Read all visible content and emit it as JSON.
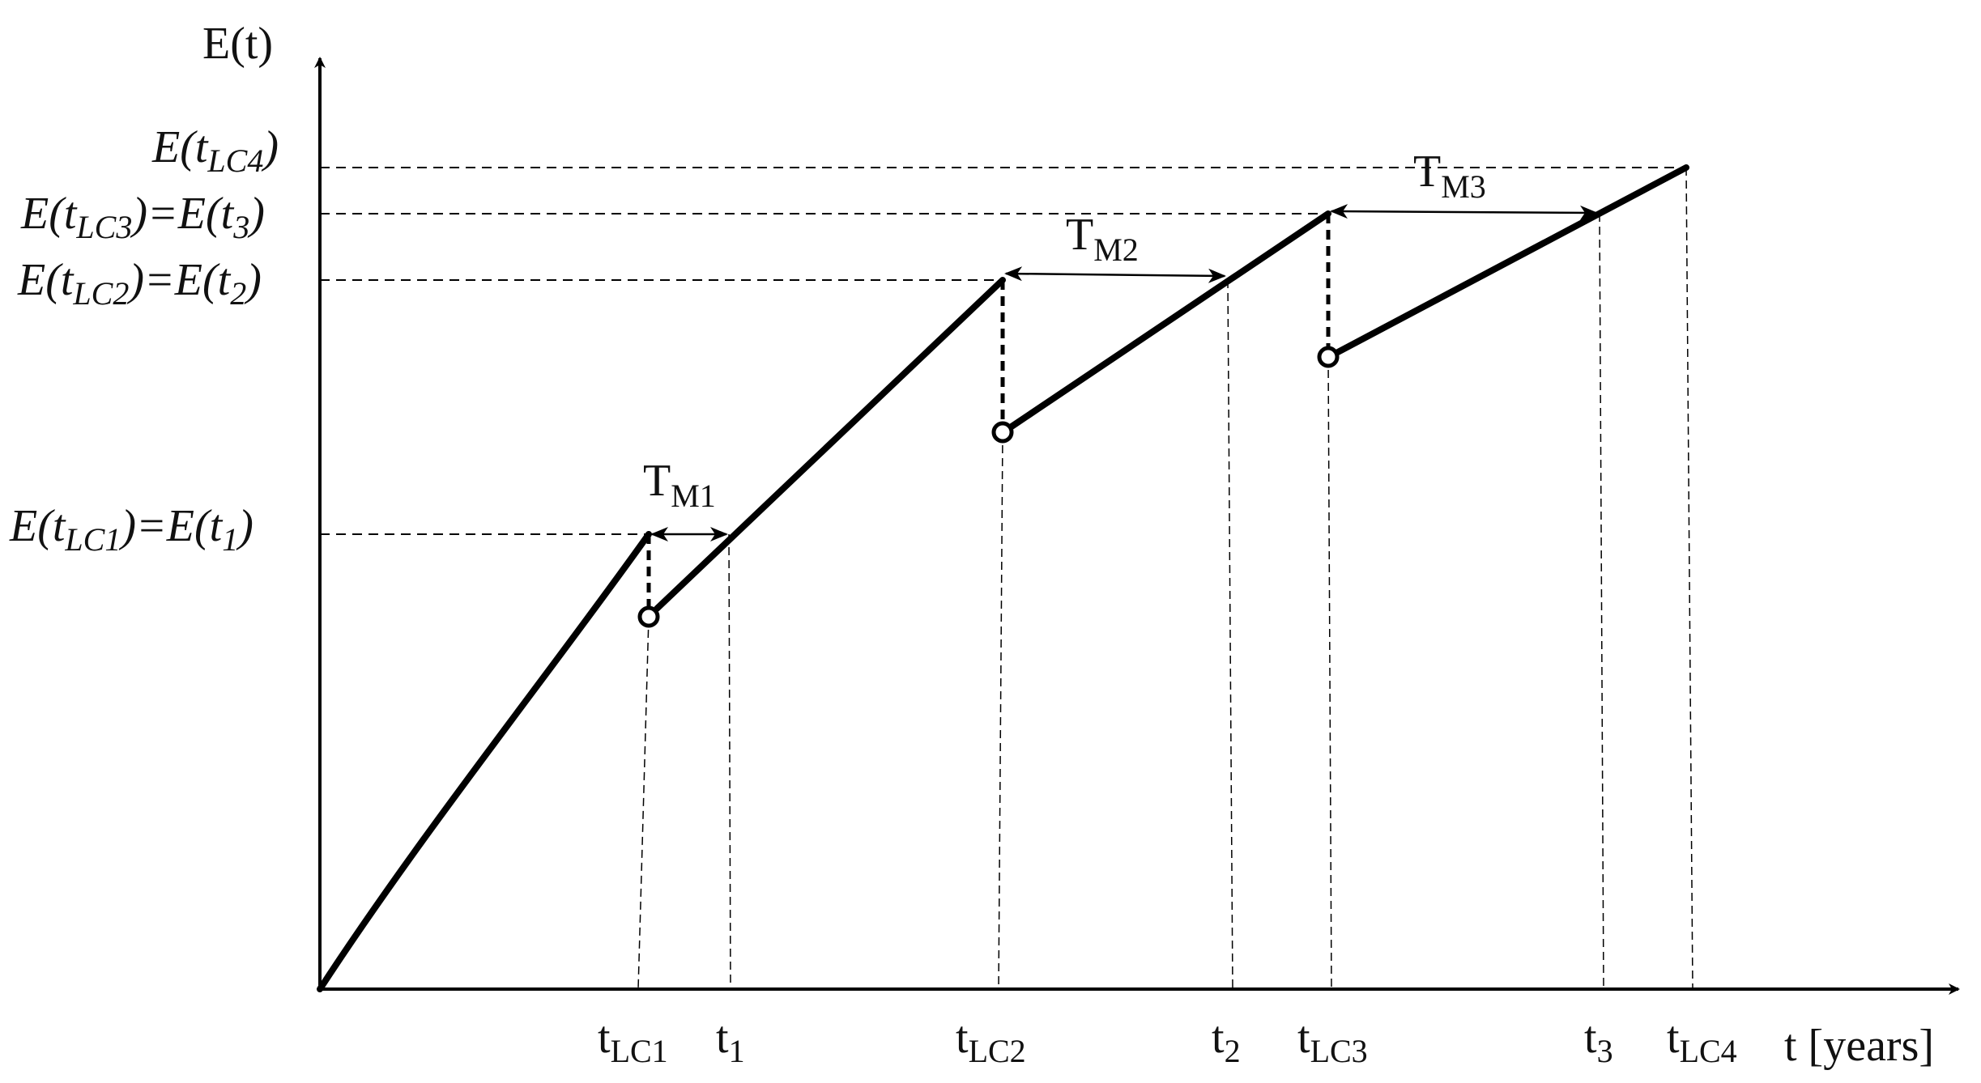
{
  "colors": {
    "line": "#000000",
    "guide": "#000000",
    "background": "#ffffff"
  },
  "axes": {
    "y_label": "E(t)",
    "x_label": "t [years]"
  },
  "x_ticks": [
    {
      "id": "tLC1",
      "base": "t",
      "sub": "LC1"
    },
    {
      "id": "t1",
      "base": "t",
      "sub": "1"
    },
    {
      "id": "tLC2",
      "base": "t",
      "sub": "LC2"
    },
    {
      "id": "t2",
      "base": "t",
      "sub": "2"
    },
    {
      "id": "tLC3",
      "base": "t",
      "sub": "LC3"
    },
    {
      "id": "t3",
      "base": "t",
      "sub": "3"
    },
    {
      "id": "tLC4",
      "base": "t",
      "sub": "LC4"
    }
  ],
  "y_labels": {
    "e1": {
      "pre": "E(t",
      "sub1": "LC1",
      "mid": ")=E(t",
      "sub2": "1",
      "post": ")"
    },
    "e2": {
      "pre": "E(t",
      "sub1": "LC2",
      "mid": ")=E(t",
      "sub2": "2",
      "post": ")"
    },
    "e3": {
      "pre": "E(t",
      "sub1": "LC3",
      "mid": ")=E(t",
      "sub2": "3",
      "post": ")"
    },
    "e4": {
      "pre": "E(t",
      "sub1": "LC4",
      "post": ")"
    }
  },
  "intervals": [
    {
      "id": "m1",
      "base": "T",
      "sub": "M1"
    },
    {
      "id": "m2",
      "base": "T",
      "sub": "M2"
    },
    {
      "id": "m3",
      "base": "T",
      "sub": "M3"
    }
  ]
}
